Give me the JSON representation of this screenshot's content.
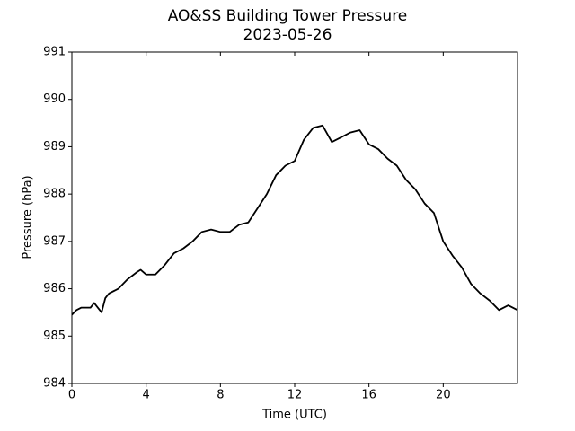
{
  "chart_data": {
    "type": "line",
    "title": "AO&SS Building Tower Pressure",
    "subtitle": "2023-05-26",
    "x_label": "Time (UTC)",
    "y_label": "Pressure (hPa)",
    "x": [
      0,
      0.25,
      0.5,
      1,
      1.2,
      1.5,
      1.6,
      1.8,
      2,
      2.5,
      3,
      3.5,
      3.7,
      4,
      4.5,
      5,
      5.5,
      6,
      6.5,
      7,
      7.5,
      8,
      8.5,
      9,
      9.5,
      10,
      10.5,
      11,
      11.5,
      12,
      12.5,
      13,
      13.5,
      14,
      14.5,
      15,
      15.5,
      16,
      16.5,
      17,
      17.5,
      18,
      18.5,
      19,
      19.5,
      20,
      20.5,
      21,
      21.5,
      22,
      22.5,
      23,
      23.5,
      24
    ],
    "series": [
      {
        "name": "Pressure",
        "color": "#000000",
        "values": [
          985.45,
          985.55,
          985.6,
          985.6,
          985.7,
          985.55,
          985.5,
          985.8,
          985.9,
          986.0,
          986.2,
          986.35,
          986.4,
          986.3,
          986.3,
          986.5,
          986.75,
          986.85,
          987.0,
          987.2,
          987.25,
          987.2,
          987.2,
          987.35,
          987.4,
          987.7,
          988.0,
          988.4,
          988.6,
          988.7,
          989.15,
          989.4,
          989.45,
          989.1,
          989.2,
          989.3,
          989.35,
          989.05,
          988.95,
          988.75,
          988.6,
          988.3,
          988.1,
          987.8,
          987.6,
          987.0,
          986.7,
          986.45,
          986.1,
          985.9,
          985.75,
          985.55,
          985.65,
          985.55
        ]
      }
    ],
    "xlim": [
      0,
      24
    ],
    "xticks": [
      0,
      4,
      8,
      12,
      16,
      20
    ],
    "ylim": [
      984,
      991
    ],
    "yticks": [
      984,
      985,
      986,
      987,
      988,
      989,
      990,
      991
    ],
    "grid": false
  }
}
